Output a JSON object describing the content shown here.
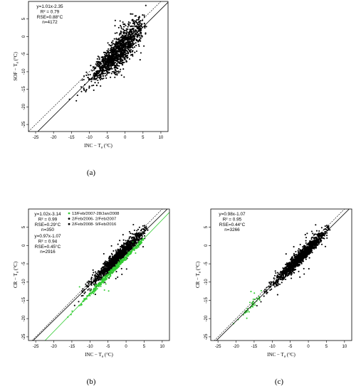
{
  "chart_data": [
    {
      "id": "a",
      "type": "scatter",
      "panel_label": "(a)",
      "title": "",
      "xlabel": "INC − T",
      "xlabel_sub": "a",
      "xlabel_unit": " (°C)",
      "ylabel": "SOF − T",
      "ylabel_sub": "a",
      "ylabel_unit": " (°C)",
      "xlim": [
        -27,
        12
      ],
      "ylim": [
        -27,
        10
      ],
      "xticks": [
        -25,
        -20,
        -15,
        -10,
        -5,
        0,
        5,
        10
      ],
      "yticks": [
        -25,
        -20,
        -15,
        -10,
        -5,
        0,
        5
      ],
      "grid": false,
      "stats": [
        "y=1.01x-2.35",
        "R² = 0.79",
        "RSE=0.88°C",
        "n=4172"
      ],
      "stats_color": "#000000",
      "fit": {
        "slope": 1.01,
        "intercept": -2.35
      },
      "one_to_one": true,
      "series": [
        {
          "color": "#000000",
          "n": 4172,
          "slope": 1.01,
          "intercept": -2.35,
          "spread": 1.7,
          "x_range": [
            -22,
            6
          ],
          "x_center": -2,
          "x_sd": 3.6
        }
      ]
    },
    {
      "id": "b",
      "type": "scatter",
      "panel_label": "(b)",
      "title": "",
      "xlabel": "INC − T",
      "xlabel_sub": "a",
      "xlabel_unit": " (°C)",
      "ylabel": "CR − T",
      "ylabel_sub": "a",
      "ylabel_unit": " (°C)",
      "xlim": [
        -27,
        12
      ],
      "ylim": [
        -26,
        10
      ],
      "xticks": [
        -25,
        -20,
        -15,
        -10,
        -5,
        0,
        5,
        10
      ],
      "yticks": [
        -25,
        -20,
        -15,
        -10,
        -5,
        0,
        5
      ],
      "grid": false,
      "stats_green": [
        "y=1.02x-3.14",
        "R² = 0.99",
        "RSE=0.29°C",
        "n=350"
      ],
      "stats_black": [
        "y=0.97x-1.07",
        "R² = 0.94",
        "RSE=0.45°C",
        "n=2916"
      ],
      "legend_placement": "top-left",
      "legend": [
        {
          "label": "13/Feb/2007-28/Jan/2008",
          "color": "#33cc33"
        },
        {
          "label": "2/Feb/2006- 2/Feb/2007",
          "color": "#000000"
        },
        {
          "label": "2/Feb/2008- 9/Feb/2016",
          "color": "#000000"
        }
      ],
      "fits": [
        {
          "slope": 1.02,
          "intercept": -3.14,
          "color": "#33cc33"
        },
        {
          "slope": 0.97,
          "intercept": -1.07,
          "color": "#000000"
        }
      ],
      "one_to_one": true,
      "series": [
        {
          "color": "#000000",
          "n": 2916,
          "slope": 0.97,
          "intercept": -1.07,
          "spread": 0.9,
          "x_range": [
            -18,
            6
          ],
          "x_center": -2,
          "x_sd": 3.6
        },
        {
          "color": "#33cc33",
          "n": 350,
          "slope": 1.02,
          "intercept": -3.14,
          "spread": 0.35,
          "x_range": [
            -22,
            5
          ],
          "x_center": -3,
          "x_sd": 4.5
        }
      ]
    },
    {
      "id": "c",
      "type": "scatter",
      "panel_label": "(c)",
      "title": "",
      "xlabel": "INC − T",
      "xlabel_sub": "a",
      "xlabel_unit": " (°C)",
      "ylabel": "CR − T",
      "ylabel_sub": "a",
      "ylabel_unit": " (°C)",
      "xlim": [
        -27,
        12
      ],
      "ylim": [
        -26,
        10
      ],
      "xticks": [
        -25,
        -20,
        -15,
        -10,
        -5,
        0,
        5,
        10
      ],
      "yticks": [
        -25,
        -20,
        -15,
        -10,
        -5,
        0,
        5
      ],
      "grid": false,
      "stats": [
        "y=0.98x-1.07",
        "R² = 0.95",
        "RSE=0.44°C",
        "n=3266"
      ],
      "stats_color": "#000000",
      "fit": {
        "slope": 0.98,
        "intercept": -1.07
      },
      "one_to_one": true,
      "series": [
        {
          "color": "#000000",
          "n": 3266,
          "slope": 0.98,
          "intercept": -1.07,
          "spread": 0.85,
          "x_range": [
            -18,
            6
          ],
          "x_center": -2,
          "x_sd": 3.6
        },
        {
          "color": "#33cc33",
          "n": 40,
          "slope": 0.98,
          "intercept": -1.07,
          "spread": 0.6,
          "x_range": [
            -21,
            -13
          ],
          "x_center": -16,
          "x_sd": 2.0
        }
      ]
    }
  ]
}
